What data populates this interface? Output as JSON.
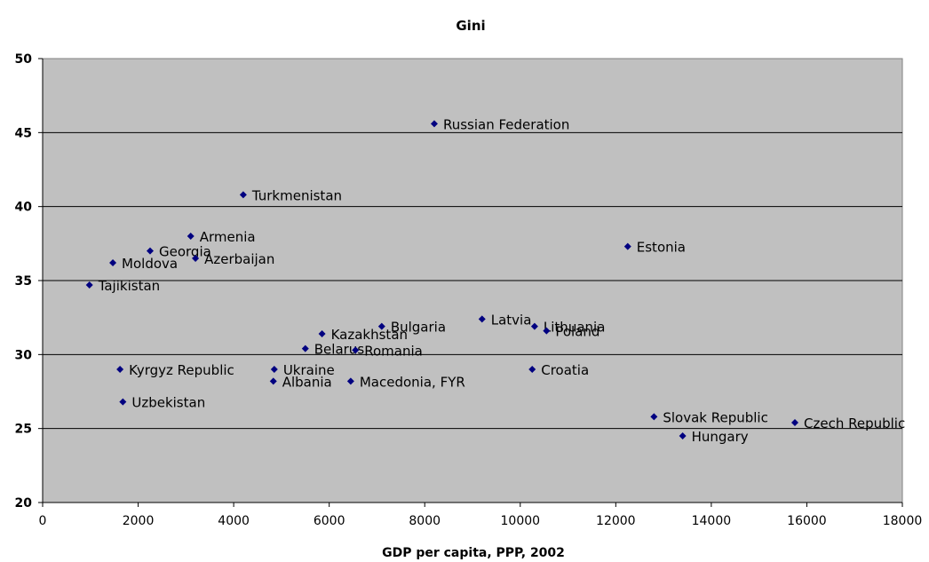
{
  "chart_data": {
    "type": "scatter",
    "title": "Gini",
    "xlabel": "GDP per capita, PPP, 2002",
    "ylabel": "",
    "xlim": [
      0,
      18000
    ],
    "ylim": [
      20,
      50
    ],
    "xticks": [
      0,
      2000,
      4000,
      6000,
      8000,
      10000,
      12000,
      14000,
      16000,
      18000
    ],
    "yticks": [
      20,
      25,
      30,
      35,
      40,
      45,
      50
    ],
    "grid": "horizontal",
    "plot_background": "#c0c0c0",
    "marker_color": "#000080",
    "points": [
      {
        "label": "Russian Federation",
        "x": 8200,
        "y": 45.6
      },
      {
        "label": "Turkmenistan",
        "x": 4200,
        "y": 40.8
      },
      {
        "label": "Armenia",
        "x": 3100,
        "y": 38.0
      },
      {
        "label": "Georgia",
        "x": 2250,
        "y": 37.0
      },
      {
        "label": "Azerbaijan",
        "x": 3200,
        "y": 36.5
      },
      {
        "label": "Moldova",
        "x": 1470,
        "y": 36.2
      },
      {
        "label": "Tajikistan",
        "x": 980,
        "y": 34.7
      },
      {
        "label": "Estonia",
        "x": 12250,
        "y": 37.3
      },
      {
        "label": "Latvia",
        "x": 9200,
        "y": 32.4
      },
      {
        "label": "Bulgaria",
        "x": 7100,
        "y": 31.9
      },
      {
        "label": "Lithuania",
        "x": 10300,
        "y": 31.9
      },
      {
        "label": "Poland",
        "x": 10550,
        "y": 31.6
      },
      {
        "label": "Kazakhstan",
        "x": 5850,
        "y": 31.4
      },
      {
        "label": "Belarus",
        "x": 5500,
        "y": 30.4
      },
      {
        "label": "Romania",
        "x": 6550,
        "y": 30.3
      },
      {
        "label": "Kyrgyz Republic",
        "x": 1620,
        "y": 29.0
      },
      {
        "label": "Ukraine",
        "x": 4850,
        "y": 29.0
      },
      {
        "label": "Croatia",
        "x": 10250,
        "y": 29.0
      },
      {
        "label": "Albania",
        "x": 4830,
        "y": 28.2
      },
      {
        "label": "Macedonia, FYR",
        "x": 6450,
        "y": 28.2
      },
      {
        "label": "Uzbekistan",
        "x": 1680,
        "y": 26.8
      },
      {
        "label": "Slovak Republic",
        "x": 12800,
        "y": 25.8
      },
      {
        "label": "Czech Republic",
        "x": 15750,
        "y": 25.4
      },
      {
        "label": "Hungary",
        "x": 13400,
        "y": 24.5
      }
    ]
  }
}
